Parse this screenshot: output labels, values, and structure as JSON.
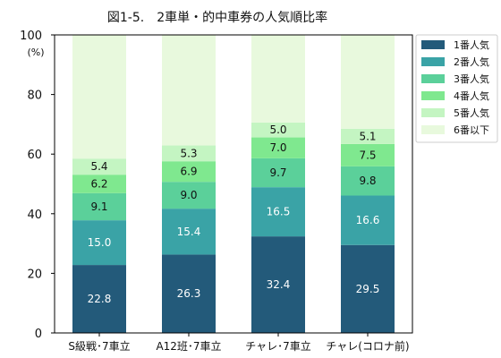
{
  "chart_data": {
    "type": "bar",
    "stacked": true,
    "title": "図1-5.　2車単・的中車券の人気順比率",
    "ylabel_unit": "(%)",
    "ylim": [
      0,
      100
    ],
    "yticks": [
      0,
      20,
      40,
      60,
      80,
      100
    ],
    "categories": [
      "S級戦･7車立",
      "A12班･7車立",
      "チャレ･7車立",
      "チャレ(コロナ前)"
    ],
    "series": [
      {
        "name": "1番人気",
        "color": "#235a7a",
        "values": [
          22.8,
          26.3,
          32.4,
          29.5
        ]
      },
      {
        "name": "2番人気",
        "color": "#3aa3a6",
        "values": [
          15.0,
          15.4,
          16.5,
          16.6
        ]
      },
      {
        "name": "3番人気",
        "color": "#5bd09a",
        "values": [
          9.1,
          9.0,
          9.7,
          9.8
        ]
      },
      {
        "name": "4番人気",
        "color": "#7fe88f",
        "values": [
          6.2,
          6.9,
          7.0,
          7.5
        ]
      },
      {
        "name": "5番人気",
        "color": "#c4f5c2",
        "values": [
          5.4,
          5.3,
          5.0,
          5.1
        ]
      },
      {
        "name": "6番以下",
        "color": "#e8f9dd",
        "values": [
          41.5,
          37.1,
          29.4,
          31.5
        ]
      }
    ],
    "data_labels": [
      [
        "22.8",
        "15.0",
        "9.1",
        "6.2",
        "5.4",
        ""
      ],
      [
        "26.3",
        "15.4",
        "9.0",
        "6.9",
        "5.3",
        ""
      ],
      [
        "32.4",
        "16.5",
        "9.7",
        "7.0",
        "5.0",
        ""
      ],
      [
        "29.5",
        "16.6",
        "9.8",
        "7.5",
        "5.1",
        ""
      ]
    ],
    "legend_position": "right",
    "grid": false
  }
}
